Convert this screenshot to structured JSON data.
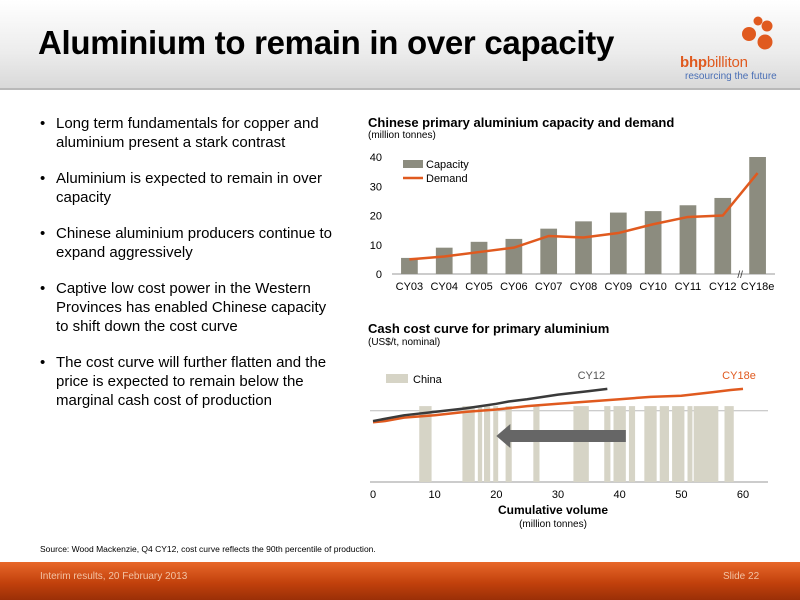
{
  "slide": {
    "title": "Aluminium to remain in over capacity",
    "bullets": [
      "Long term fundamentals for copper and aluminium present a stark contrast",
      "Aluminium is expected to remain in over capacity",
      "Chinese aluminium producers continue to expand aggressively",
      "Captive low cost power in the Western Provinces has enabled Chinese capacity to shift down the cost curve",
      "The cost curve will further flatten and the price is expected to remain below the marginal cash cost of production"
    ],
    "source": "Source:   Wood Mackenzie, Q4 CY12, cost curve reflects the 90th percentile of production.",
    "footer_left": "Interim results, 20 February 2013",
    "footer_right": "Slide 22"
  },
  "logo": {
    "name_part1": "bhp",
    "name_part2": "billiton",
    "tagline": "resourcing the future",
    "brand_color": "#e05a1f",
    "tagline_color": "#4a6fb5"
  },
  "chart_data": [
    {
      "type": "bar",
      "title": "Chinese primary aluminium capacity and demand",
      "subtitle": "(million tonnes)",
      "categories": [
        "CY03",
        "CY04",
        "CY05",
        "CY06",
        "CY07",
        "CY08",
        "CY09",
        "CY10",
        "CY11",
        "CY12",
        "CY18e"
      ],
      "series": [
        {
          "name": "Capacity",
          "kind": "bar",
          "color": "#8c8c7f",
          "values": [
            5.5,
            9,
            11,
            12,
            15.5,
            18,
            21,
            21.5,
            23.5,
            26,
            40
          ]
        },
        {
          "name": "Demand",
          "kind": "line",
          "color": "#e05a1f",
          "values": [
            5,
            6,
            7.5,
            9,
            13,
            12.5,
            14,
            17,
            19.5,
            20,
            34.5
          ]
        }
      ],
      "ylim": [
        0,
        40
      ],
      "yticks": [
        "0",
        "10",
        "20",
        "30",
        "40"
      ],
      "axis_break_mark": "//",
      "legend_position": "top-left",
      "grid": false
    },
    {
      "type": "area",
      "title": "Cash cost curve for primary aluminium",
      "subtitle": "(US$/t, nominal)",
      "xlabel": "Cumulative volume",
      "xlabel_sub": "(million tonnes)",
      "xlim": [
        0,
        60
      ],
      "xticks": [
        "0",
        "10",
        "20",
        "30",
        "40",
        "50",
        "60"
      ],
      "legend": [
        "China"
      ],
      "china_color": "#d6d4c6",
      "china_blocks": [
        [
          7.5,
          9.5
        ],
        [
          14.5,
          16.5
        ],
        [
          17,
          17.7
        ],
        [
          18,
          19
        ],
        [
          19.5,
          20.3
        ],
        [
          21.5,
          22.5
        ],
        [
          26,
          27
        ],
        [
          32.5,
          35
        ],
        [
          37.5,
          38.5
        ],
        [
          39,
          41
        ],
        [
          41.5,
          42.5
        ],
        [
          44,
          46
        ],
        [
          46.5,
          48
        ],
        [
          48.5,
          50.5
        ],
        [
          51,
          51.8
        ],
        [
          52,
          56
        ],
        [
          57,
          58.5
        ]
      ],
      "series": [
        {
          "name": "CY12",
          "color": "#3a3a3a",
          "x": [
            0,
            2,
            5,
            10,
            15,
            20,
            22,
            25,
            30,
            35,
            38
          ],
          "y": [
            0.53,
            0.55,
            0.58,
            0.61,
            0.64,
            0.68,
            0.7,
            0.72,
            0.76,
            0.79,
            0.81
          ]
        },
        {
          "name": "CY18e",
          "color": "#e05a1f",
          "x": [
            0,
            2,
            5,
            10,
            15,
            20,
            25,
            30,
            35,
            40,
            45,
            50,
            55,
            58,
            60
          ],
          "y": [
            0.52,
            0.53,
            0.56,
            0.58,
            0.61,
            0.63,
            0.66,
            0.68,
            0.7,
            0.72,
            0.74,
            0.75,
            0.78,
            0.8,
            0.81
          ]
        }
      ],
      "reference_line_y": 0.62,
      "shift_arrow": {
        "from_x": 41,
        "to_x": 20,
        "y": 0.4,
        "color": "#666666"
      }
    }
  ]
}
